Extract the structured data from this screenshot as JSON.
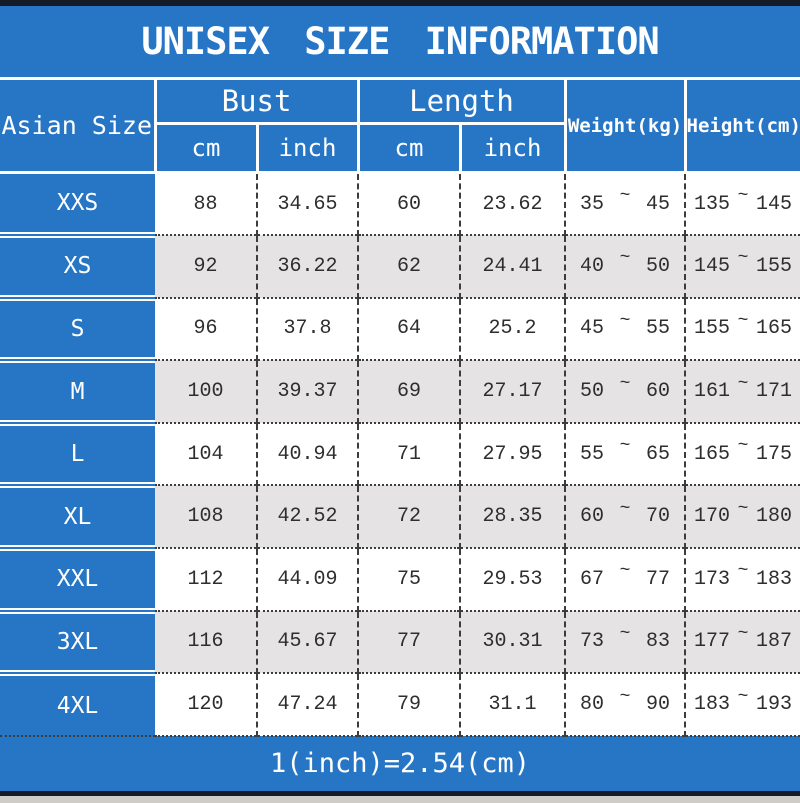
{
  "title": "UNISEX SIZE INFORMATION",
  "footer_note": "1(inch)=2.54(cm)",
  "colors": {
    "accent_blue": "#2776C6",
    "dark_bar": "#141A26",
    "alt_row_gray": "#E6E3E4",
    "white": "#FFFFFF",
    "data_text": "#2E2E2E"
  },
  "header": {
    "size_label": "Asian Size",
    "bust_label": "Bust",
    "length_label": "Length",
    "weight_label": "Weight(kg)",
    "height_label": "Height(cm)",
    "units": [
      "cm",
      "inch",
      "cm",
      "inch"
    ],
    "tilde": "~"
  },
  "chart_data": {
    "type": "table",
    "title": "UNISEX SIZE INFORMATION",
    "columns": [
      "Asian Size",
      "Bust cm",
      "Bust inch",
      "Length cm",
      "Length inch",
      "Weight(kg)",
      "Height(cm)"
    ],
    "rows": [
      [
        "XXS",
        "88",
        "34.65",
        "60",
        "23.62",
        "35 ~ 45",
        "135 ~ 145"
      ],
      [
        "XS",
        "92",
        "36.22",
        "62",
        "24.41",
        "40 ~ 50",
        "145 ~ 155"
      ],
      [
        "S",
        "96",
        "37.8",
        "64",
        "25.2",
        "45 ~ 55",
        "155 ~ 165"
      ],
      [
        "M",
        "100",
        "39.37",
        "69",
        "27.17",
        "50 ~ 60",
        "161 ~ 171"
      ],
      [
        "L",
        "104",
        "40.94",
        "71",
        "27.95",
        "55 ~ 65",
        "165 ~ 175"
      ],
      [
        "XL",
        "108",
        "42.52",
        "72",
        "28.35",
        "60 ~ 70",
        "170 ~ 180"
      ],
      [
        "XXL",
        "112",
        "44.09",
        "75",
        "29.53",
        "67 ~ 77",
        "173 ~ 183"
      ],
      [
        "3XL",
        "116",
        "45.67",
        "77",
        "30.31",
        "73 ~ 83",
        "177 ~ 187"
      ],
      [
        "4XL",
        "120",
        "47.24",
        "79",
        "31.1",
        "80 ~ 90",
        "183 ~ 193"
      ]
    ],
    "footnote": "1(inch)=2.54(cm)"
  }
}
